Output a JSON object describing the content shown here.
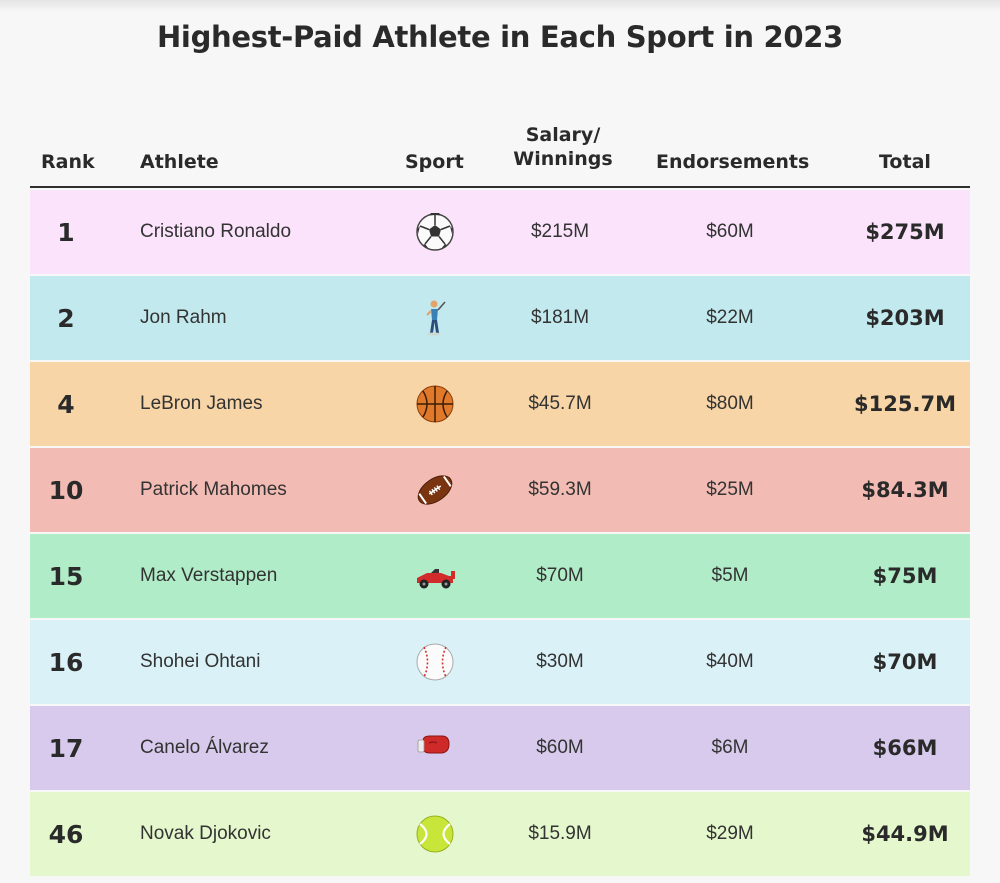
{
  "title": "Highest-Paid Athlete in Each Sport in 2023",
  "headers": {
    "rank": "Rank",
    "athlete": "Athlete",
    "sport": "Sport",
    "salary_line1": "Salary/",
    "salary_line2": "Winnings",
    "endorsements": "Endorsements",
    "total": "Total"
  },
  "chart_data": {
    "type": "table",
    "columns": [
      "Rank",
      "Athlete",
      "Sport",
      "Salary/ Winnings",
      "Endorsements",
      "Total"
    ],
    "rows": [
      {
        "rank": "1",
        "athlete": "Cristiano Ronaldo",
        "sport_icon": "soccer-ball-icon",
        "salary": "$215M",
        "endorsements": "$60M",
        "total": "$275M",
        "color": "#fbe3fb"
      },
      {
        "rank": "2",
        "athlete": "Jon Rahm",
        "sport_icon": "golfer-icon",
        "salary": "$181M",
        "endorsements": "$22M",
        "total": "$203M",
        "color": "#c1e9ee"
      },
      {
        "rank": "4",
        "athlete": "LeBron James",
        "sport_icon": "basketball-icon",
        "salary": "$45.7M",
        "endorsements": "$80M",
        "total": "$125.7M",
        "color": "#f8d5a6"
      },
      {
        "rank": "10",
        "athlete": "Patrick Mahomes",
        "sport_icon": "football-icon",
        "salary": "$59.3M",
        "endorsements": "$25M",
        "total": "$84.3M",
        "color": "#f2bbb3"
      },
      {
        "rank": "15",
        "athlete": "Max Verstappen",
        "sport_icon": "race-car-icon",
        "salary": "$70M",
        "endorsements": "$5M",
        "total": "$75M",
        "color": "#b0ecc8"
      },
      {
        "rank": "16",
        "athlete": "Shohei Ohtani",
        "sport_icon": "baseball-icon",
        "salary": "$30M",
        "endorsements": "$40M",
        "total": "$70M",
        "color": "#d9f1f7"
      },
      {
        "rank": "17",
        "athlete": "Canelo Álvarez",
        "sport_icon": "boxing-glove-icon",
        "salary": "$60M",
        "endorsements": "$6M",
        "total": "$66M",
        "color": "#d8caec"
      },
      {
        "rank": "46",
        "athlete": "Novak Djokovic",
        "sport_icon": "tennis-ball-icon",
        "salary": "$15.9M",
        "endorsements": "$29M",
        "total": "$44.9M",
        "color": "#e5f7cc"
      }
    ]
  }
}
